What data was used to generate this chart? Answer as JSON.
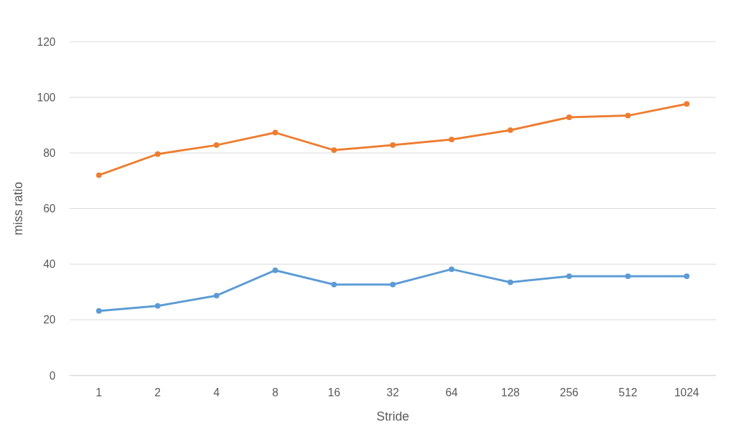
{
  "chart_data": {
    "type": "line",
    "xlabel": "Stride",
    "ylabel": "miss ratio",
    "categories": [
      "1",
      "2",
      "4",
      "8",
      "16",
      "32",
      "64",
      "128",
      "256",
      "512",
      "1024"
    ],
    "series": [
      {
        "color": "#5b9bd5",
        "values": [
          23.2,
          25,
          28.7,
          37.8,
          32.7,
          32.7,
          38.2,
          33.5,
          35.7,
          35.7,
          35.7
        ]
      },
      {
        "color": "#ed7d31",
        "values": [
          72,
          79.6,
          82.8,
          87.3,
          81,
          82.8,
          84.8,
          88.2,
          92.8,
          93.4,
          97.6
        ]
      }
    ],
    "ylim": [
      0,
      120
    ],
    "yticks": [
      0,
      20,
      40,
      60,
      80,
      100,
      120
    ],
    "grid": "y",
    "marker": "circle",
    "line_style": "solid"
  }
}
